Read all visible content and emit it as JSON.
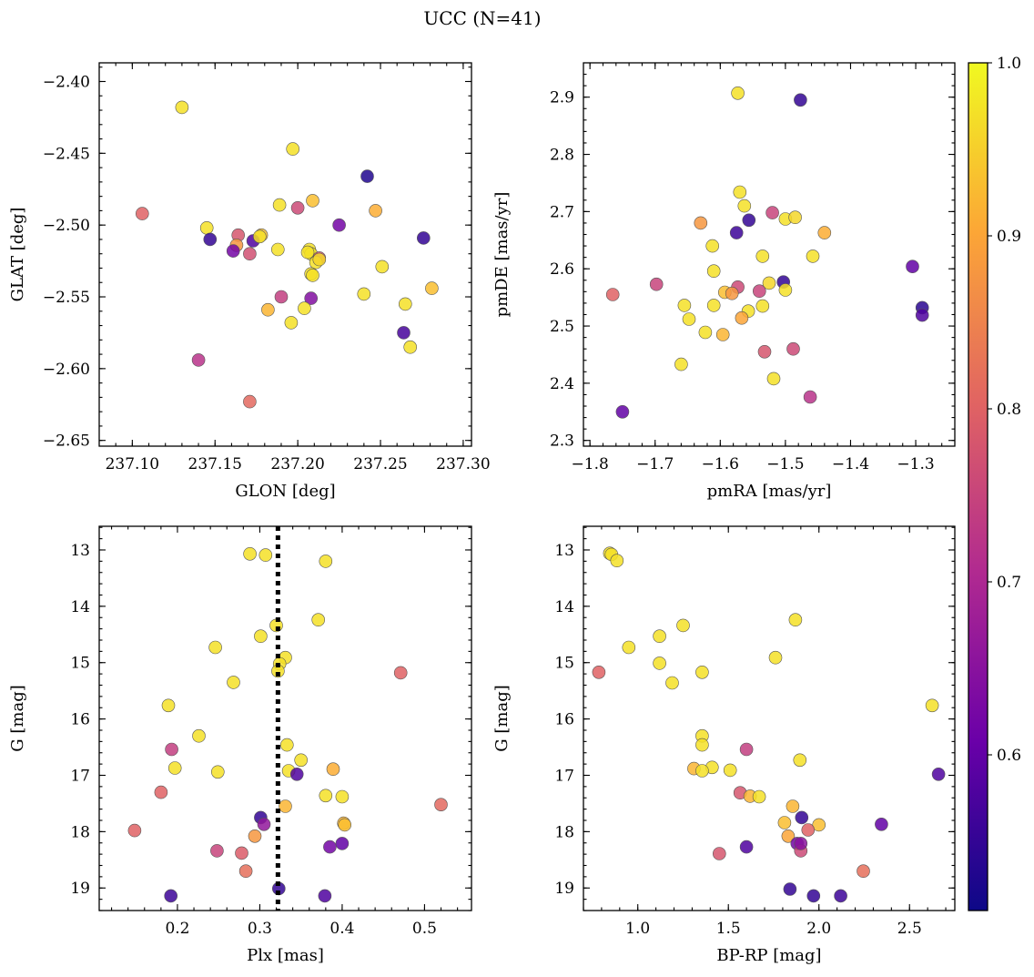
{
  "figure": {
    "title": "UCC (N=41)"
  },
  "colorbar": {
    "range": [
      0.51,
      1.0
    ],
    "ticks": [
      0.6,
      0.7,
      0.8,
      0.9,
      1.0
    ],
    "tick_labels": [
      "0.6",
      "0.7",
      "0.8",
      "0.9",
      "1.0"
    ],
    "colormap": "plasma",
    "colormap_stops": [
      "#0d0887",
      "#6a00a8",
      "#b12a90",
      "#e16462",
      "#fca636",
      "#f0f921"
    ]
  },
  "chart_data": [
    {
      "type": "scatter",
      "xlabel": "GLON [deg]",
      "ylabel": "GLAT [deg]",
      "xlim": [
        237.08,
        237.305
      ],
      "ylim": [
        -2.654,
        -2.387
      ],
      "y_inverted": false,
      "xticks": [
        237.1,
        237.15,
        237.2,
        237.25,
        237.3
      ],
      "xtick_labels": [
        "237.10",
        "237.15",
        "237.20",
        "237.25",
        "237.30"
      ],
      "yticks": [
        -2.4,
        -2.45,
        -2.5,
        -2.55,
        -2.6,
        -2.65
      ],
      "ytick_labels": [
        "−2.40",
        "−2.45",
        "−2.50",
        "−2.55",
        "−2.60",
        "−2.65"
      ],
      "points": [
        [
          237.13,
          -2.418,
          0.97
        ],
        [
          237.197,
          -2.447,
          0.97
        ],
        [
          237.242,
          -2.466,
          0.53
        ],
        [
          237.106,
          -2.492,
          0.8
        ],
        [
          237.2,
          -2.488,
          0.76
        ],
        [
          237.209,
          -2.483,
          0.93
        ],
        [
          237.247,
          -2.49,
          0.91
        ],
        [
          237.189,
          -2.486,
          0.97
        ],
        [
          237.225,
          -2.5,
          0.62
        ],
        [
          237.145,
          -2.502,
          0.97
        ],
        [
          237.147,
          -2.51,
          0.55
        ],
        [
          237.178,
          -2.507,
          0.93
        ],
        [
          237.164,
          -2.507,
          0.78
        ],
        [
          237.173,
          -2.511,
          0.58
        ],
        [
          237.163,
          -2.514,
          0.88
        ],
        [
          237.161,
          -2.518,
          0.62
        ],
        [
          237.171,
          -2.52,
          0.77
        ],
        [
          237.188,
          -2.517,
          0.97
        ],
        [
          237.207,
          -2.517,
          0.97
        ],
        [
          237.208,
          -2.52,
          0.98
        ],
        [
          237.213,
          -2.523,
          0.77
        ],
        [
          237.211,
          -2.526,
          0.97
        ],
        [
          237.208,
          -2.534,
          0.97
        ],
        [
          237.276,
          -2.509,
          0.55
        ],
        [
          237.251,
          -2.529,
          0.97
        ],
        [
          237.24,
          -2.548,
          0.97
        ],
        [
          237.19,
          -2.55,
          0.74
        ],
        [
          237.208,
          -2.551,
          0.64
        ],
        [
          237.265,
          -2.555,
          0.97
        ],
        [
          237.281,
          -2.544,
          0.93
        ],
        [
          237.204,
          -2.558,
          0.97
        ],
        [
          237.182,
          -2.559,
          0.92
        ],
        [
          237.196,
          -2.568,
          0.97
        ],
        [
          237.264,
          -2.575,
          0.57
        ],
        [
          237.268,
          -2.585,
          0.97
        ],
        [
          237.14,
          -2.594,
          0.72
        ],
        [
          237.171,
          -2.623,
          0.81
        ],
        [
          237.177,
          -2.508,
          0.97
        ],
        [
          237.209,
          -2.535,
          0.97
        ],
        [
          237.206,
          -2.519,
          0.97
        ],
        [
          237.213,
          -2.524,
          0.96
        ]
      ]
    },
    {
      "type": "scatter",
      "xlabel": "pmRA [mas/yr]",
      "ylabel": "pmDE [mas/yr]",
      "xlim": [
        -1.81,
        -1.24
      ],
      "ylim": [
        2.29,
        2.96
      ],
      "y_inverted": false,
      "xticks": [
        -1.8,
        -1.7,
        -1.6,
        -1.5,
        -1.4,
        -1.3
      ],
      "xtick_labels": [
        "−1.8",
        "−1.7",
        "−1.6",
        "−1.5",
        "−1.4",
        "−1.3"
      ],
      "yticks": [
        2.3,
        2.4,
        2.5,
        2.6,
        2.7,
        2.8,
        2.9
      ],
      "ytick_labels": [
        "2.3",
        "2.4",
        "2.5",
        "2.6",
        "2.7",
        "2.8",
        "2.9"
      ],
      "points": [
        [
          -1.573,
          2.907,
          0.97
        ],
        [
          -1.477,
          2.895,
          0.55
        ],
        [
          -1.57,
          2.734,
          0.97
        ],
        [
          -1.563,
          2.71,
          0.97
        ],
        [
          -1.63,
          2.68,
          0.88
        ],
        [
          -1.52,
          2.698,
          0.75
        ],
        [
          -1.5,
          2.687,
          0.97
        ],
        [
          -1.485,
          2.69,
          0.96
        ],
        [
          -1.556,
          2.685,
          0.55
        ],
        [
          -1.575,
          2.663,
          0.56
        ],
        [
          -1.44,
          2.663,
          0.91
        ],
        [
          -1.612,
          2.64,
          0.97
        ],
        [
          -1.535,
          2.622,
          0.97
        ],
        [
          -1.458,
          2.622,
          0.97
        ],
        [
          -1.61,
          2.596,
          0.97
        ],
        [
          -1.305,
          2.604,
          0.6
        ],
        [
          -1.765,
          2.555,
          0.8
        ],
        [
          -1.698,
          2.573,
          0.75
        ],
        [
          -1.525,
          2.575,
          0.96
        ],
        [
          -1.503,
          2.577,
          0.55
        ],
        [
          -1.5,
          2.563,
          0.97
        ],
        [
          -1.573,
          2.568,
          0.76
        ],
        [
          -1.54,
          2.561,
          0.75
        ],
        [
          -1.593,
          2.559,
          0.93
        ],
        [
          -1.582,
          2.557,
          0.88
        ],
        [
          -1.655,
          2.536,
          0.97
        ],
        [
          -1.61,
          2.536,
          0.97
        ],
        [
          -1.535,
          2.535,
          0.97
        ],
        [
          -1.557,
          2.526,
          0.97
        ],
        [
          -1.567,
          2.514,
          0.9
        ],
        [
          -1.648,
          2.512,
          0.97
        ],
        [
          -1.623,
          2.489,
          0.97
        ],
        [
          -1.596,
          2.485,
          0.92
        ],
        [
          -1.29,
          2.532,
          0.54
        ],
        [
          -1.29,
          2.519,
          0.58
        ],
        [
          -1.66,
          2.433,
          0.97
        ],
        [
          -1.532,
          2.455,
          0.78
        ],
        [
          -1.488,
          2.46,
          0.76
        ],
        [
          -1.518,
          2.408,
          0.97
        ],
        [
          -1.462,
          2.376,
          0.72
        ],
        [
          -1.75,
          2.35,
          0.6
        ]
      ]
    },
    {
      "type": "scatter",
      "xlabel": "Plx [mas]",
      "ylabel": "G [mag]",
      "xlim": [
        0.105,
        0.557
      ],
      "ylim": [
        12.58,
        19.4
      ],
      "y_inverted": true,
      "xticks": [
        0.2,
        0.3,
        0.4,
        0.5
      ],
      "xtick_labels": [
        "0.2",
        "0.3",
        "0.4",
        "0.5"
      ],
      "yticks": [
        13,
        14,
        15,
        16,
        17,
        18,
        19
      ],
      "ytick_labels": [
        "13",
        "14",
        "15",
        "16",
        "17",
        "18",
        "19"
      ],
      "vline": 0.322,
      "points": [
        [
          0.288,
          13.07,
          0.97
        ],
        [
          0.307,
          13.09,
          0.97
        ],
        [
          0.38,
          13.2,
          0.97
        ],
        [
          0.371,
          14.24,
          0.97
        ],
        [
          0.32,
          14.34,
          0.97
        ],
        [
          0.301,
          14.53,
          0.97
        ],
        [
          0.246,
          14.73,
          0.97
        ],
        [
          0.331,
          14.91,
          0.97
        ],
        [
          0.324,
          15.02,
          0.97
        ],
        [
          0.322,
          15.15,
          0.97
        ],
        [
          0.471,
          15.18,
          0.8
        ],
        [
          0.268,
          15.35,
          0.97
        ],
        [
          0.189,
          15.76,
          0.97
        ],
        [
          0.226,
          16.3,
          0.97
        ],
        [
          0.333,
          16.46,
          0.97
        ],
        [
          0.193,
          16.54,
          0.74
        ],
        [
          0.35,
          16.73,
          0.97
        ],
        [
          0.197,
          16.87,
          0.97
        ],
        [
          0.389,
          16.89,
          0.91
        ],
        [
          0.335,
          16.92,
          0.97
        ],
        [
          0.249,
          16.94,
          0.97
        ],
        [
          0.345,
          16.98,
          0.58
        ],
        [
          0.18,
          17.3,
          0.8
        ],
        [
          0.38,
          17.36,
          0.97
        ],
        [
          0.4,
          17.38,
          0.97
        ],
        [
          0.331,
          17.55,
          0.92
        ],
        [
          0.52,
          17.52,
          0.81
        ],
        [
          0.402,
          17.85,
          0.92
        ],
        [
          0.403,
          17.88,
          0.93
        ],
        [
          0.301,
          17.75,
          0.55
        ],
        [
          0.305,
          17.87,
          0.66
        ],
        [
          0.148,
          17.98,
          0.8
        ],
        [
          0.294,
          18.08,
          0.88
        ],
        [
          0.4,
          18.21,
          0.6
        ],
        [
          0.385,
          18.27,
          0.62
        ],
        [
          0.248,
          18.34,
          0.75
        ],
        [
          0.278,
          18.38,
          0.79
        ],
        [
          0.283,
          18.7,
          0.82
        ],
        [
          0.323,
          19.01,
          0.55
        ],
        [
          0.192,
          19.14,
          0.56
        ],
        [
          0.379,
          19.14,
          0.58
        ]
      ]
    },
    {
      "type": "scatter",
      "xlabel": "BP-RP [mag]",
      "ylabel": "G [mag]",
      "xlim": [
        0.7,
        2.75
      ],
      "ylim": [
        12.58,
        19.4
      ],
      "y_inverted": true,
      "xticks": [
        1.0,
        1.5,
        2.0,
        2.5
      ],
      "xtick_labels": [
        "1.0",
        "1.5",
        "2.0",
        "2.5"
      ],
      "yticks": [
        13,
        14,
        15,
        16,
        17,
        18,
        19
      ],
      "ytick_labels": [
        "13",
        "14",
        "15",
        "16",
        "17",
        "18",
        "19"
      ],
      "points": [
        [
          0.845,
          13.06,
          0.97
        ],
        [
          0.855,
          13.08,
          0.97
        ],
        [
          0.885,
          13.19,
          0.97
        ],
        [
          1.87,
          14.24,
          0.97
        ],
        [
          1.25,
          14.34,
          0.97
        ],
        [
          1.12,
          14.53,
          0.97
        ],
        [
          0.95,
          14.73,
          0.97
        ],
        [
          1.76,
          14.91,
          0.97
        ],
        [
          1.12,
          15.01,
          0.97
        ],
        [
          0.785,
          15.17,
          0.8
        ],
        [
          1.355,
          15.17,
          0.97
        ],
        [
          1.19,
          15.36,
          0.97
        ],
        [
          2.625,
          15.76,
          0.97
        ],
        [
          1.355,
          16.3,
          0.97
        ],
        [
          1.355,
          16.46,
          0.97
        ],
        [
          1.6,
          16.54,
          0.74
        ],
        [
          1.895,
          16.73,
          0.97
        ],
        [
          1.31,
          16.88,
          0.92
        ],
        [
          1.41,
          16.86,
          0.97
        ],
        [
          1.355,
          16.92,
          0.97
        ],
        [
          1.51,
          16.91,
          0.97
        ],
        [
          2.66,
          16.98,
          0.58
        ],
        [
          1.565,
          17.31,
          0.78
        ],
        [
          1.62,
          17.37,
          0.92
        ],
        [
          1.67,
          17.38,
          0.97
        ],
        [
          1.855,
          17.55,
          0.92
        ],
        [
          2.345,
          17.87,
          0.6
        ],
        [
          1.81,
          17.84,
          0.93
        ],
        [
          2.0,
          17.88,
          0.93
        ],
        [
          1.905,
          17.75,
          0.55
        ],
        [
          1.94,
          17.97,
          0.8
        ],
        [
          1.83,
          18.08,
          0.9
        ],
        [
          1.88,
          18.21,
          0.62
        ],
        [
          1.6,
          18.27,
          0.58
        ],
        [
          1.9,
          18.34,
          0.76
        ],
        [
          1.45,
          18.39,
          0.78
        ],
        [
          2.245,
          18.7,
          0.82
        ],
        [
          1.84,
          19.02,
          0.55
        ],
        [
          1.97,
          19.14,
          0.55
        ],
        [
          2.12,
          19.14,
          0.56
        ],
        [
          1.9,
          18.21,
          0.65
        ]
      ]
    }
  ]
}
